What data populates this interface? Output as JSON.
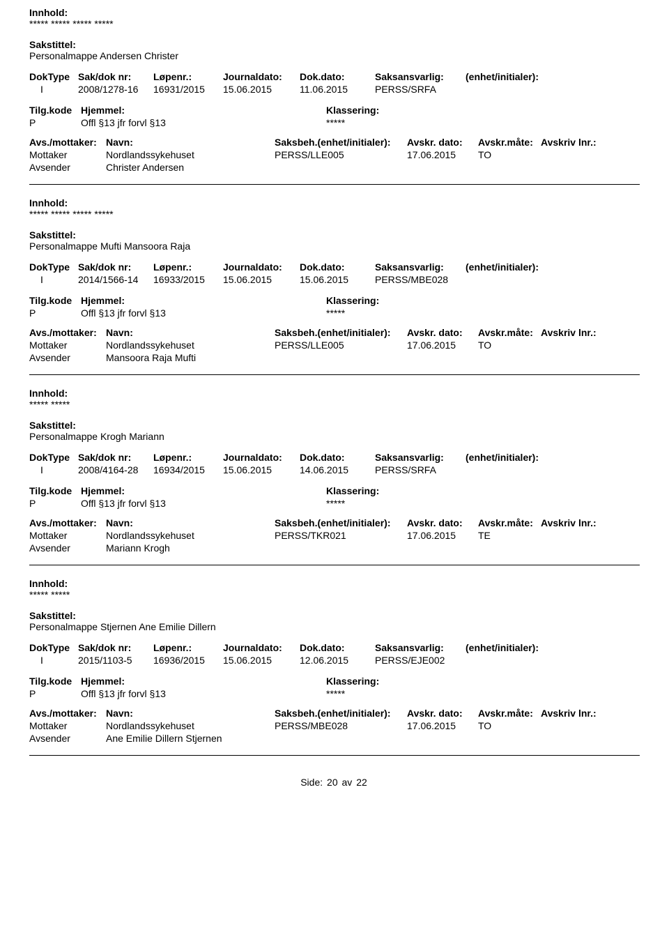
{
  "labels": {
    "innhold": "Innhold:",
    "sakstittel": "Sakstittel:",
    "doktype": "DokType",
    "sakdok": "Sak/dok nr:",
    "lopenr": "Løpenr.:",
    "journaldato": "Journaldato:",
    "dokdato": "Dok.dato:",
    "saksansvarlig": "Saksansvarlig:",
    "enhet": "(enhet/initialer):",
    "tilgkode": "Tilg.kode",
    "hjemmel": "Hjemmel:",
    "klassering": "Klassering:",
    "avsmottaker": "Avs./mottaker:",
    "navn": "Navn:",
    "saksbeh_enhet": "Saksbeh.(enhet/initialer):",
    "avskr_dato": "Avskr. dato:",
    "avskr_mate": "Avskr.måte:",
    "avskriv_lnr": "Avskriv lnr.:",
    "mottaker": "Mottaker",
    "avsender": "Avsender",
    "side": "Side:",
    "av": "av"
  },
  "page": {
    "current": "20",
    "total": "22"
  },
  "entries": [
    {
      "innhold_value": "***** ***** ***** *****",
      "sakstittel_value": "Personalmappe Andersen Christer",
      "doktype": "I",
      "sakdok": "2008/1278-16",
      "lopenr": "16931/2015",
      "journaldato": "15.06.2015",
      "dokdato": "11.06.2015",
      "saksansvarlig": "PERSS/SRFA",
      "tilgkode": "P",
      "hjemmel": "Offl §13 jfr forvl §13",
      "klassering_value": "*****",
      "mottaker_navn": "Nordlandssykehuset",
      "saksbeh": "PERSS/LLE005",
      "avskr_dato": "17.06.2015",
      "avskr_mate": "TO",
      "avsender_navn": "Christer Andersen"
    },
    {
      "innhold_value": "***** ***** ***** *****",
      "sakstittel_value": "Personalmappe Mufti Mansoora Raja",
      "doktype": "I",
      "sakdok": "2014/1566-14",
      "lopenr": "16933/2015",
      "journaldato": "15.06.2015",
      "dokdato": "15.06.2015",
      "saksansvarlig": "PERSS/MBE028",
      "tilgkode": "P",
      "hjemmel": "Offl §13 jfr forvl §13",
      "klassering_value": "*****",
      "mottaker_navn": "Nordlandssykehuset",
      "saksbeh": "PERSS/LLE005",
      "avskr_dato": "17.06.2015",
      "avskr_mate": "TO",
      "avsender_navn": "Mansoora Raja Mufti"
    },
    {
      "innhold_value": "***** *****",
      "sakstittel_value": "Personalmappe Krogh Mariann",
      "doktype": "I",
      "sakdok": "2008/4164-28",
      "lopenr": "16934/2015",
      "journaldato": "15.06.2015",
      "dokdato": "14.06.2015",
      "saksansvarlig": "PERSS/SRFA",
      "tilgkode": "P",
      "hjemmel": "Offl §13 jfr forvl §13",
      "klassering_value": "*****",
      "mottaker_navn": "Nordlandssykehuset",
      "saksbeh": "PERSS/TKR021",
      "avskr_dato": "17.06.2015",
      "avskr_mate": "TE",
      "avsender_navn": "Mariann Krogh"
    },
    {
      "innhold_value": "***** *****",
      "sakstittel_value": "Personalmappe Stjernen Ane Emilie Dillern",
      "doktype": "I",
      "sakdok": "2015/1103-5",
      "lopenr": "16936/2015",
      "journaldato": "15.06.2015",
      "dokdato": "12.06.2015",
      "saksansvarlig": "PERSS/EJE002",
      "tilgkode": "P",
      "hjemmel": "Offl §13 jfr forvl §13",
      "klassering_value": "*****",
      "mottaker_navn": "Nordlandssykehuset",
      "saksbeh": "PERSS/MBE028",
      "avskr_dato": "17.06.2015",
      "avskr_mate": "TO",
      "avsender_navn": "Ane Emilie Dillern Stjernen"
    }
  ]
}
